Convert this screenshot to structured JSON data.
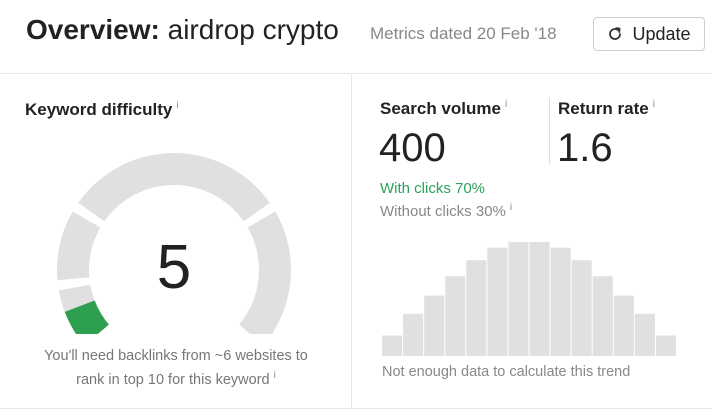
{
  "header": {
    "title_bold": "Overview:",
    "title_query": "airdrop crypto",
    "metrics_date": "Metrics dated 20 Feb '18",
    "update_label": "Update"
  },
  "keyword_difficulty": {
    "label": "Keyword difficulty",
    "info": "i",
    "value": "5",
    "score": 5,
    "note_line1": "You'll need backlinks from ~6 websites to",
    "note_line2": "rank in top 10 for this keyword",
    "active_color": "#2e9e4f",
    "track_color": "#e0e0e0"
  },
  "search_volume": {
    "label": "Search volume",
    "info": "i",
    "value": "400",
    "with_clicks": "With clicks 70%",
    "without_clicks": "Without clicks 30%",
    "with_clicks_color": "#2aa35a"
  },
  "return_rate": {
    "label": "Return rate",
    "info": "i",
    "value": "1.6"
  },
  "trend": {
    "note": "Not enough data to calculate this trend",
    "bar_color": "#e0e0e0",
    "relative_values": [
      0.18,
      0.37,
      0.53,
      0.7,
      0.84,
      0.95,
      1.0,
      1.0,
      0.95,
      0.84,
      0.7,
      0.53,
      0.37,
      0.18
    ]
  }
}
